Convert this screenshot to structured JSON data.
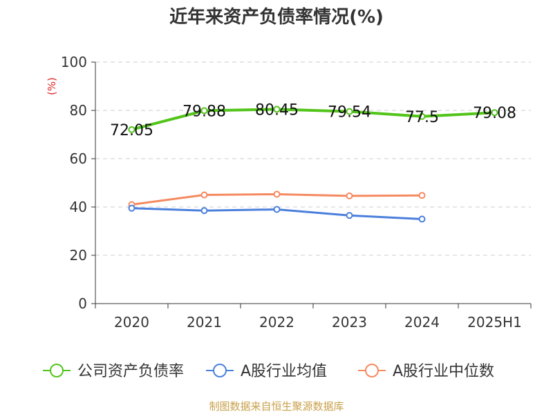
{
  "title": "近年来资产负债率情况(%)",
  "footer": "制图数据来自恒生聚源数据库",
  "chart_data": {
    "type": "line",
    "title": "近年来资产负债率情况(%)",
    "ylabel": "(%)",
    "xlabel": "",
    "ylim": [
      0,
      100
    ],
    "yticks": [
      0,
      20,
      40,
      60,
      80,
      100
    ],
    "grid": true,
    "legend_position": "bottom",
    "categories": [
      "2020",
      "2021",
      "2022",
      "2023",
      "2024",
      "2025H1"
    ],
    "series": [
      {
        "name": "公司资产负债率",
        "color": "#52c41a",
        "values": [
          72.05,
          79.88,
          80.45,
          79.54,
          77.5,
          79.08
        ],
        "labels": [
          "72.05",
          "79.88",
          "80.45",
          "79.54",
          "77.5",
          "79.08"
        ]
      },
      {
        "name": "A股行业均值",
        "color": "#4a7fdc",
        "values": [
          39.5,
          38.5,
          39.0,
          36.5,
          35.0,
          null
        ]
      },
      {
        "name": "A股行业中位数",
        "color": "#f5895f",
        "values": [
          41.0,
          45.0,
          45.3,
          44.6,
          44.8,
          null
        ]
      }
    ]
  }
}
